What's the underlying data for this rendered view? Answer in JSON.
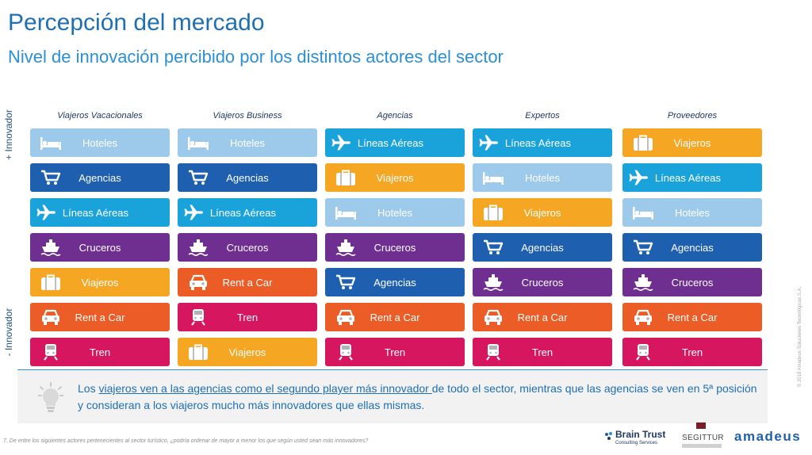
{
  "title": "Percepción del mercado",
  "subtitle": "Nivel de innovación percibido por los distintos actores del sector",
  "axis": {
    "plus": "+ Innovador",
    "minus": "- Innovador"
  },
  "colors": {
    "Hoteles": "#9dc9ea",
    "Agencias": "#1f5fb0",
    "Líneas Aéreas": "#1aa3da",
    "Cruceros": "#6e2f91",
    "Viajeros": "#f5a623",
    "Rent a Car": "#eb5c26",
    "Tren": "#d6165f"
  },
  "icons": {
    "Hoteles": "bed-icon",
    "Agencias": "shopping-cart-icon",
    "Líneas Aéreas": "airplane-icon",
    "Cruceros": "cruise-ship-icon",
    "Viajeros": "suitcase-icon",
    "Rent a Car": "car-icon",
    "Tren": "train-icon"
  },
  "columns": [
    {
      "header": "Viajeros Vacacionales",
      "items": [
        "Hoteles",
        "Agencias",
        "Líneas Aéreas",
        "Cruceros",
        "Viajeros",
        "Rent a Car",
        "Tren"
      ]
    },
    {
      "header": "Viajeros Business",
      "items": [
        "Hoteles",
        "Agencias",
        "Líneas Aéreas",
        "Cruceros",
        "Rent a Car",
        "Tren",
        "Viajeros"
      ]
    },
    {
      "header": "Agencias",
      "items": [
        "Líneas Aéreas",
        "Viajeros",
        "Hoteles",
        "Cruceros",
        "Agencias",
        "Rent a Car",
        "Tren"
      ]
    },
    {
      "header": "Expertos",
      "items": [
        "Líneas Aéreas",
        "Hoteles",
        "Viajeros",
        "Agencias",
        "Cruceros",
        "Rent a Car",
        "Tren"
      ]
    },
    {
      "header": "Proveedores",
      "items": [
        "Viajeros",
        "Líneas Aéreas",
        "Hoteles",
        "Agencias",
        "Cruceros",
        "Rent a Car",
        "Tren"
      ]
    }
  ],
  "note": {
    "prefix": "Los ",
    "underlined": "viajeros ven a las agencias como el segundo player más innovador ",
    "rest": "de todo el sector, mientras que las agencias se ven en 5ª posición y consideran a los viajeros mucho más innovadores que ellas mismas."
  },
  "footnote": "7. De entre los siguientes actores pertenecientes al sector turístico, ¿podría ordenar de mayor a menor los que según usted sean más innovadores?",
  "copyright": "© 2018 Amadeus Soluciones Tecnológicas S.A.",
  "logos": {
    "brain_trust": "Brain Trust",
    "brain_trust_sub": "Consulting Services",
    "segittur": "SEGITTUR",
    "amadeus": "amadeus"
  }
}
